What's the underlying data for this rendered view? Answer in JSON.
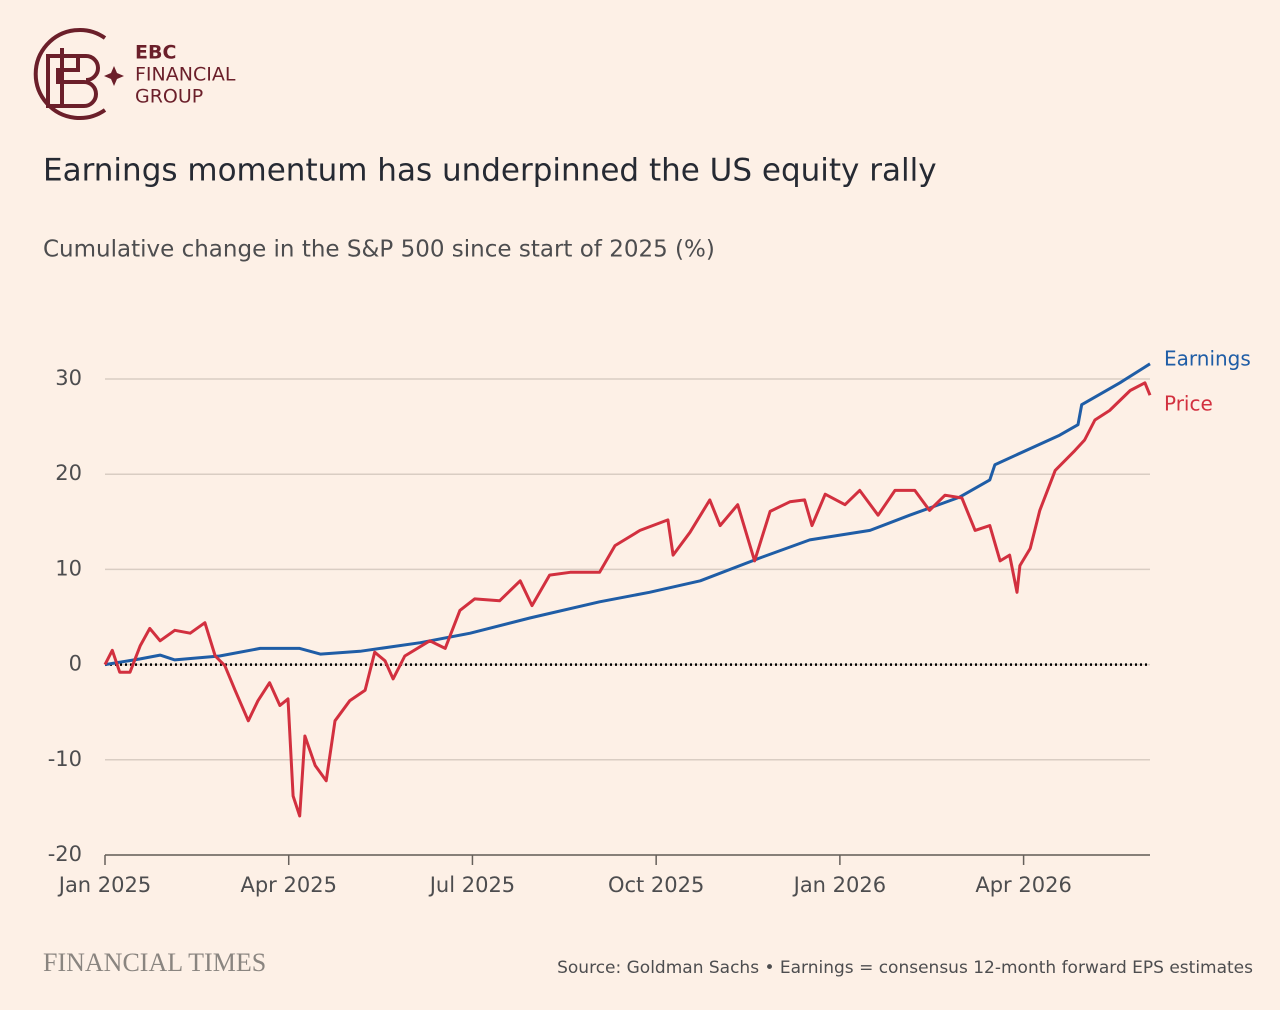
{
  "logo": {
    "line1": "EBC",
    "line2": "FINANCIAL",
    "line3": "GROUP"
  },
  "chart_data": {
    "type": "line",
    "title": "Earnings momentum has underpinned the US equity rally",
    "subtitle": "Cumulative change in the S&P 500 since start of 2025 (%)",
    "xlim": [
      2025,
      2026.422
    ],
    "xticks": [
      {
        "value": 2025,
        "label": "Jan 2025"
      },
      {
        "value": 2025.25,
        "label": "Apr 2025"
      },
      {
        "value": 2025.5,
        "label": "Jul 2025"
      },
      {
        "value": 2025.75,
        "label": "Oct 2025"
      },
      {
        "value": 2026,
        "label": "Jan 2026"
      },
      {
        "value": 2026.25,
        "label": "Apr 2026"
      }
    ],
    "ylim": [
      -20,
      32
    ],
    "yticks": [
      -20,
      -10,
      0,
      10,
      20,
      30
    ],
    "grid": true,
    "series": [
      {
        "name": "Earnings",
        "color": "#1f5da6",
        "x": [
          2025,
          2025.048,
          2025.075,
          2025.095,
          2025.156,
          2025.211,
          2025.265,
          2025.293,
          2025.347,
          2025.429,
          2025.497,
          2025.578,
          2025.673,
          2025.741,
          2025.81,
          2025.891,
          2025.959,
          2026.041,
          2026.095,
          2026.163,
          2026.204,
          2026.211,
          2026.299,
          2026.324,
          2026.329,
          2026.381,
          2026.422
        ],
        "values": [
          0,
          0.6,
          1.0,
          0.5,
          0.9,
          1.7,
          1.7,
          1.1,
          1.4,
          2.3,
          3.3,
          4.9,
          6.6,
          7.6,
          8.8,
          11.2,
          13.1,
          14.1,
          15.7,
          17.6,
          19.4,
          21.0,
          24.1,
          25.2,
          27.3,
          29.6,
          31.6
        ]
      },
      {
        "name": "Price",
        "color": "#d2303f",
        "x": [
          2025,
          2025.01,
          2025.02,
          2025.034,
          2025.048,
          2025.061,
          2025.075,
          2025.095,
          2025.116,
          2025.136,
          2025.15,
          2025.163,
          2025.177,
          2025.195,
          2025.208,
          2025.224,
          2025.238,
          2025.249,
          2025.256,
          2025.265,
          2025.272,
          2025.286,
          2025.301,
          2025.313,
          2025.333,
          2025.354,
          2025.367,
          2025.381,
          2025.392,
          2025.408,
          2025.442,
          2025.463,
          2025.483,
          2025.503,
          2025.537,
          2025.565,
          2025.581,
          2025.605,
          2025.633,
          2025.673,
          2025.694,
          2025.728,
          2025.766,
          2025.773,
          2025.796,
          2025.823,
          2025.837,
          2025.861,
          2025.884,
          2025.905,
          2025.932,
          2025.952,
          2025.962,
          2025.98,
          2026.007,
          2026.027,
          2026.052,
          2026.075,
          2026.102,
          2026.122,
          2026.143,
          2026.166,
          2026.184,
          2026.204,
          2026.218,
          2026.231,
          2026.241,
          2026.245,
          2026.259,
          2026.272,
          2026.293,
          2026.32,
          2026.333,
          2026.347,
          2026.367,
          2026.395,
          2026.415,
          2026.422
        ],
        "values": [
          0,
          1.5,
          -0.8,
          -0.8,
          2,
          3.8,
          2.5,
          3.6,
          3.3,
          4.4,
          0.9,
          -0.1,
          -2.7,
          -5.9,
          -3.8,
          -1.9,
          -4.3,
          -3.6,
          -13.8,
          -15.9,
          -7.5,
          -10.6,
          -12.2,
          -5.9,
          -3.8,
          -2.7,
          1.3,
          0.4,
          -1.5,
          0.9,
          2.5,
          1.7,
          5.7,
          6.9,
          6.7,
          8.8,
          6.2,
          9.4,
          9.7,
          9.7,
          12.5,
          14.1,
          15.2,
          11.5,
          13.9,
          17.3,
          14.6,
          16.8,
          10.9,
          16.1,
          17.1,
          17.3,
          14.6,
          17.9,
          16.8,
          18.3,
          15.7,
          18.3,
          18.3,
          16.2,
          17.8,
          17.5,
          14.1,
          14.6,
          10.9,
          11.5,
          7.6,
          10.4,
          12.2,
          16.2,
          20.4,
          22.5,
          23.6,
          25.7,
          26.7,
          28.8,
          29.6,
          28.3
        ]
      }
    ],
    "publisher": "FINANCIAL TIMES",
    "source": "Source: Goldman Sachs • Earnings = consensus 12-month forward EPS estimates"
  }
}
